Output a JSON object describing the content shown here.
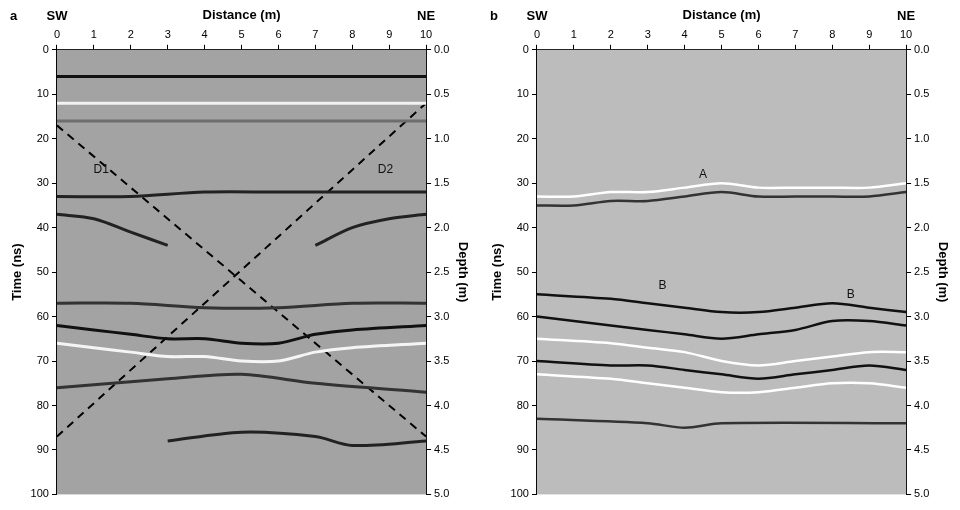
{
  "chart_data": [
    {
      "type": "line",
      "panel_label": "a",
      "x_label": "Distance (m)",
      "x_start_label": "SW",
      "x_end_label": "NE",
      "y_label": "Time (ns)",
      "y2_label": "Depth (m)",
      "grid": false,
      "xlim": [
        0,
        10
      ],
      "xticks": [
        0,
        1,
        2,
        3,
        4,
        5,
        6,
        7,
        8,
        9,
        10
      ],
      "ylim": [
        0,
        100
      ],
      "yticks": [
        0,
        10,
        20,
        30,
        40,
        50,
        60,
        70,
        80,
        90,
        100
      ],
      "y2lim": [
        0,
        5
      ],
      "y2ticks": [
        {
          "value": 0,
          "label": "0.0"
        },
        0.5,
        {
          "value": 1,
          "label": "1.0"
        },
        1.5,
        {
          "value": 2,
          "label": "2.0"
        },
        2.5,
        {
          "value": 3,
          "label": "3.0"
        },
        3.5,
        {
          "value": 4,
          "label": "4.0"
        },
        4.5,
        {
          "value": 5,
          "label": "5.0"
        }
      ],
      "series": [
        {
          "x": [
            0,
            10
          ],
          "values": [
            6,
            6
          ],
          "color": "#111111",
          "line_style": "solid"
        },
        {
          "x": [
            0,
            10
          ],
          "values": [
            12,
            12
          ],
          "color": "#f2f2f2",
          "line_style": "solid"
        },
        {
          "x": [
            0,
            10
          ],
          "values": [
            16,
            16
          ],
          "color": "#6e6e6e",
          "line_style": "solid"
        },
        {
          "x": [
            0,
            2,
            4,
            6,
            8,
            10
          ],
          "values": [
            33,
            33,
            32,
            32,
            32,
            32
          ],
          "color": "#222222",
          "line_style": "solid"
        },
        {
          "x": [
            0,
            1,
            2,
            3
          ],
          "values": [
            37,
            38,
            41,
            44
          ],
          "color": "#222222",
          "line_style": "solid"
        },
        {
          "x": [
            7,
            8,
            9,
            10
          ],
          "values": [
            44,
            40,
            38,
            37
          ],
          "color": "#222222",
          "line_style": "solid"
        },
        {
          "x": [
            0,
            2,
            4,
            6,
            8,
            10
          ],
          "values": [
            57,
            57,
            58,
            58,
            57,
            57
          ],
          "color": "#333333",
          "line_style": "solid"
        },
        {
          "x": [
            0,
            1,
            2,
            3,
            4,
            5,
            6,
            7,
            8,
            10
          ],
          "values": [
            62,
            63,
            64,
            65,
            65,
            66,
            66,
            64,
            63,
            62
          ],
          "color": "#111111",
          "line_style": "solid"
        },
        {
          "x": [
            0,
            1,
            2,
            3,
            4,
            5,
            6,
            7,
            8,
            10
          ],
          "values": [
            66,
            67,
            68,
            69,
            69,
            70,
            70,
            68,
            67,
            66
          ],
          "color": "#f5f5f5",
          "line_style": "solid"
        },
        {
          "x": [
            0,
            3,
            5,
            7,
            10
          ],
          "values": [
            76,
            74,
            73,
            75,
            77
          ],
          "color": "#333333",
          "line_style": "solid"
        },
        {
          "x": [
            3,
            5,
            7,
            8,
            10
          ],
          "values": [
            88,
            86,
            87,
            89,
            88
          ],
          "color": "#222222",
          "line_style": "solid"
        },
        {
          "x": [
            0,
            10
          ],
          "values": [
            17,
            87
          ],
          "color": "#000000",
          "line_style": "dashed"
        },
        {
          "x": [
            0,
            10
          ],
          "values": [
            87,
            12
          ],
          "color": "#000000",
          "line_style": "dashed"
        }
      ],
      "annotations": [
        {
          "text": "D1",
          "x": 1.2,
          "y": 27
        },
        {
          "text": "D2",
          "x": 8.9,
          "y": 27
        }
      ]
    },
    {
      "type": "line",
      "panel_label": "b",
      "x_label": "Distance (m)",
      "x_start_label": "SW",
      "x_end_label": "NE",
      "y_label": "Time (ns)",
      "y2_label": "Depth (m)",
      "grid": false,
      "xlim": [
        0,
        10
      ],
      "xticks": [
        0,
        1,
        2,
        3,
        4,
        5,
        6,
        7,
        8,
        9,
        10
      ],
      "ylim": [
        0,
        100
      ],
      "yticks": [
        0,
        10,
        20,
        30,
        40,
        50,
        60,
        70,
        80,
        90,
        100
      ],
      "y2lim": [
        0,
        5
      ],
      "y2ticks": [
        {
          "value": 0,
          "label": "0.0"
        },
        0.5,
        {
          "value": 1,
          "label": "1.0"
        },
        1.5,
        {
          "value": 2,
          "label": "2.0"
        },
        2.5,
        {
          "value": 3,
          "label": "3.0"
        },
        3.5,
        {
          "value": 4,
          "label": "4.0"
        },
        4.5,
        {
          "value": 5,
          "label": "5.0"
        }
      ],
      "series": [
        {
          "x": [
            0,
            1,
            2,
            3,
            4,
            5,
            6,
            7,
            8,
            9,
            10
          ],
          "values": [
            33,
            33,
            32,
            32,
            31,
            30,
            31,
            31,
            31,
            31,
            30
          ],
          "color": "#ffffff",
          "line_style": "solid"
        },
        {
          "x": [
            0,
            1,
            2,
            3,
            4,
            5,
            6,
            7,
            8,
            9,
            10
          ],
          "values": [
            35,
            35,
            34,
            34,
            33,
            32,
            33,
            33,
            33,
            33,
            32
          ],
          "color": "#333333",
          "line_style": "solid"
        },
        {
          "x": [
            0,
            2,
            3,
            4,
            5,
            6,
            7,
            8,
            9,
            10
          ],
          "values": [
            55,
            56,
            57,
            58,
            59,
            59,
            58,
            57,
            58,
            59
          ],
          "color": "#111111",
          "line_style": "solid"
        },
        {
          "x": [
            0,
            1,
            2,
            3,
            4,
            5,
            6,
            7,
            8,
            9,
            10
          ],
          "values": [
            60,
            61,
            62,
            63,
            64,
            65,
            64,
            63,
            61,
            61,
            62
          ],
          "color": "#111111",
          "line_style": "solid"
        },
        {
          "x": [
            0,
            2,
            3,
            4,
            5,
            6,
            7,
            8,
            9,
            10
          ],
          "values": [
            65,
            66,
            67,
            68,
            70,
            71,
            70,
            69,
            68,
            68
          ],
          "color": "#ffffff",
          "line_style": "solid"
        },
        {
          "x": [
            0,
            2,
            3,
            4,
            5,
            6,
            7,
            8,
            9,
            10
          ],
          "values": [
            70,
            71,
            71,
            72,
            73,
            74,
            73,
            72,
            71,
            72
          ],
          "color": "#111111",
          "line_style": "solid"
        },
        {
          "x": [
            0,
            2,
            3,
            4,
            5,
            6,
            7,
            8,
            9,
            10
          ],
          "values": [
            73,
            74,
            75,
            76,
            77,
            77,
            76,
            75,
            75,
            76
          ],
          "color": "#ffffff",
          "line_style": "solid"
        },
        {
          "x": [
            0,
            3,
            4,
            5,
            10
          ],
          "values": [
            83,
            84,
            85,
            84,
            84
          ],
          "color": "#333333",
          "line_style": "solid"
        }
      ],
      "annotations": [
        {
          "text": "A",
          "x": 4.5,
          "y": 28
        },
        {
          "text": "B",
          "x": 3.4,
          "y": 53
        },
        {
          "text": "B",
          "x": 8.5,
          "y": 55
        }
      ]
    }
  ]
}
